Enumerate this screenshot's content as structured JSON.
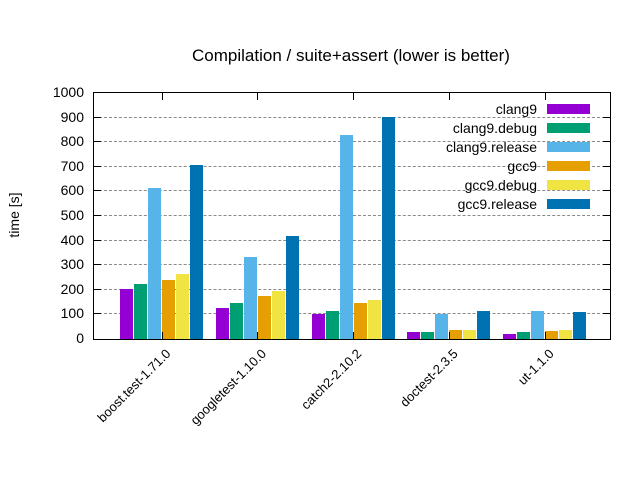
{
  "chart_data": {
    "type": "bar",
    "title": "Compilation / suite+assert (lower is better)",
    "xlabel": "",
    "ylabel": "time [s]",
    "ylim": [
      0,
      1000
    ],
    "yticks": [
      0,
      100,
      200,
      300,
      400,
      500,
      600,
      700,
      800,
      900,
      1000
    ],
    "grid": true,
    "grid_style": "dashed-gray-horizontal",
    "legend_position": "top-right-inside",
    "categories": [
      "boost.test-1.71.0",
      "googletest-1.10.0",
      "catch2-2.10.2",
      "doctest-2.3.5",
      "ut-1.1.0"
    ],
    "series": [
      {
        "name": "clang9",
        "color": "#9400d3",
        "values": [
          205,
          128,
          103,
          30,
          22
        ]
      },
      {
        "name": "clang9.debug",
        "color": "#009e73",
        "values": [
          225,
          148,
          113,
          27,
          27
        ]
      },
      {
        "name": "clang9.release",
        "color": "#56b4e9",
        "values": [
          615,
          335,
          828,
          100,
          112
        ]
      },
      {
        "name": "gcc9",
        "color": "#e69f00",
        "values": [
          240,
          174,
          147,
          36,
          33
        ]
      },
      {
        "name": "gcc9.debug",
        "color": "#f0e442",
        "values": [
          263,
          197,
          157,
          38,
          38
        ]
      },
      {
        "name": "gcc9.release",
        "color": "#0072b2",
        "values": [
          708,
          420,
          904,
          113,
          108
        ]
      }
    ]
  }
}
